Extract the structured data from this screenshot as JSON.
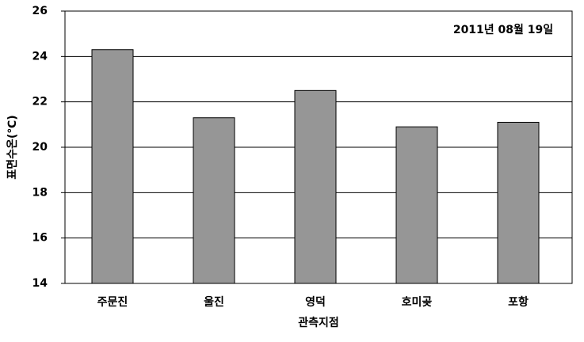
{
  "chart_data": {
    "type": "bar",
    "annotation": "2011년 08월 19일",
    "y_label": "표면수온(℃)",
    "x_label": "관측지점",
    "categories": [
      "주문진",
      "울진",
      "영덕",
      "호미곶",
      "포항"
    ],
    "values": [
      24.3,
      21.3,
      22.5,
      20.9,
      21.1
    ],
    "color": "#969696",
    "ylim": [
      14,
      26
    ],
    "yticks": [
      14,
      16,
      18,
      20,
      22,
      24,
      26
    ],
    "grid": true
  }
}
